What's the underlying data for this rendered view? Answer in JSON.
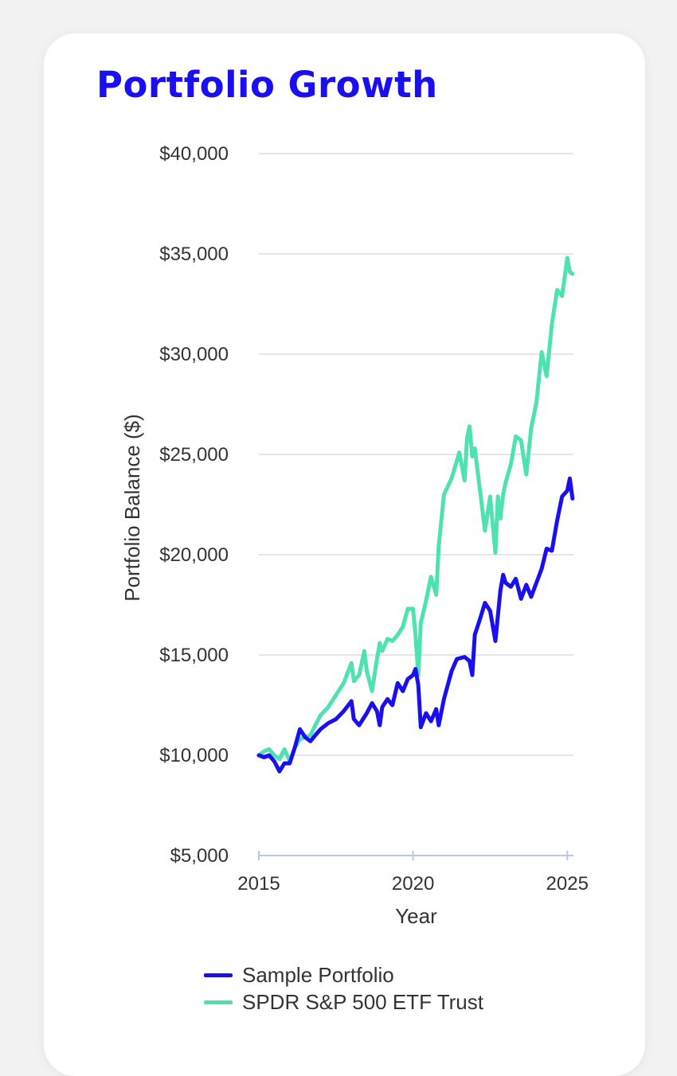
{
  "card": {
    "title": "Portfolio Growth"
  },
  "colors": {
    "title": "#1a0ff0",
    "portfolio": "#1a0ff0",
    "spy": "#4ee2b3",
    "grid": "#e5e5e5",
    "axis": "#b8c8e8"
  },
  "chart_data": {
    "type": "line",
    "title": "",
    "xlabel": "Year",
    "ylabel": "Portfolio Balance ($)",
    "xlim": [
      2015,
      2025.2
    ],
    "ylim": [
      5000,
      40000
    ],
    "x_ticks": [
      2015,
      2020,
      2025
    ],
    "x_tick_labels": [
      "2015",
      "2020",
      "2025"
    ],
    "y_ticks": [
      5000,
      10000,
      15000,
      20000,
      25000,
      30000,
      35000,
      40000
    ],
    "y_tick_labels": [
      "$5,000",
      "$10,000",
      "$15,000",
      "$20,000",
      "$25,000",
      "$30,000",
      "$35,000",
      "$40,000"
    ],
    "grid": true,
    "legend_position": "bottom",
    "series": [
      {
        "name": "Sample Portfolio",
        "color": "#1a0ff0",
        "x": [
          2015.0,
          2015.17,
          2015.33,
          2015.5,
          2015.67,
          2015.83,
          2016.0,
          2016.17,
          2016.33,
          2016.5,
          2016.67,
          2016.83,
          2017.0,
          2017.25,
          2017.5,
          2017.75,
          2018.0,
          2018.08,
          2018.25,
          2018.5,
          2018.67,
          2018.83,
          2018.92,
          2019.0,
          2019.17,
          2019.33,
          2019.5,
          2019.67,
          2019.83,
          2020.0,
          2020.08,
          2020.17,
          2020.25,
          2020.42,
          2020.58,
          2020.75,
          2020.83,
          2021.0,
          2021.25,
          2021.42,
          2021.67,
          2021.83,
          2021.92,
          2022.0,
          2022.17,
          2022.33,
          2022.5,
          2022.67,
          2022.83,
          2022.92,
          2023.0,
          2023.17,
          2023.33,
          2023.5,
          2023.67,
          2023.83,
          2024.0,
          2024.17,
          2024.33,
          2024.5,
          2024.67,
          2024.83,
          2025.0,
          2025.08,
          2025.17
        ],
        "values": [
          10000,
          9900,
          10000,
          9700,
          9200,
          9600,
          9600,
          10400,
          11300,
          10900,
          10700,
          11000,
          11300,
          11600,
          11800,
          12200,
          12700,
          11800,
          11500,
          12100,
          12600,
          12200,
          11500,
          12400,
          12800,
          12500,
          13600,
          13200,
          13800,
          14000,
          14300,
          13500,
          11400,
          12100,
          11700,
          12300,
          11500,
          12800,
          14200,
          14800,
          14900,
          14700,
          14000,
          16000,
          16800,
          17600,
          17200,
          15700,
          18200,
          19000,
          18600,
          18400,
          18800,
          17800,
          18500,
          17900,
          18600,
          19300,
          20300,
          20200,
          21700,
          22900,
          23200,
          23800,
          22800
        ]
      },
      {
        "name": "SPDR S&P 500 ETF Trust",
        "color": "#4ee2b3",
        "x": [
          2015.0,
          2015.17,
          2015.33,
          2015.5,
          2015.67,
          2015.83,
          2016.0,
          2016.17,
          2016.33,
          2016.5,
          2016.67,
          2016.83,
          2017.0,
          2017.25,
          2017.5,
          2017.75,
          2018.0,
          2018.08,
          2018.25,
          2018.42,
          2018.5,
          2018.67,
          2018.83,
          2018.92,
          2019.0,
          2019.17,
          2019.33,
          2019.5,
          2019.67,
          2019.83,
          2020.0,
          2020.08,
          2020.17,
          2020.25,
          2020.42,
          2020.58,
          2020.75,
          2020.83,
          2021.0,
          2021.25,
          2021.5,
          2021.67,
          2021.75,
          2021.83,
          2021.92,
          2022.0,
          2022.17,
          2022.33,
          2022.5,
          2022.67,
          2022.75,
          2022.83,
          2022.92,
          2023.0,
          2023.17,
          2023.33,
          2023.5,
          2023.67,
          2023.83,
          2024.0,
          2024.17,
          2024.33,
          2024.5,
          2024.67,
          2024.83,
          2025.0,
          2025.08,
          2025.17
        ],
        "values": [
          10000,
          10200,
          10300,
          10000,
          9800,
          10300,
          9700,
          10400,
          10800,
          10900,
          11000,
          11500,
          12000,
          12400,
          13000,
          13600,
          14600,
          13700,
          14000,
          15200,
          14200,
          13200,
          14800,
          15600,
          15200,
          15800,
          15700,
          16000,
          16400,
          17300,
          17300,
          16000,
          14000,
          16600,
          17700,
          18900,
          18000,
          20400,
          23000,
          23800,
          25100,
          23700,
          25800,
          26400,
          24900,
          25300,
          23200,
          21200,
          22900,
          20100,
          22900,
          21800,
          23000,
          23600,
          24500,
          25900,
          25700,
          24000,
          26300,
          27600,
          30100,
          28900,
          31500,
          33200,
          32900,
          34800,
          34100,
          34000
        ]
      }
    ]
  }
}
